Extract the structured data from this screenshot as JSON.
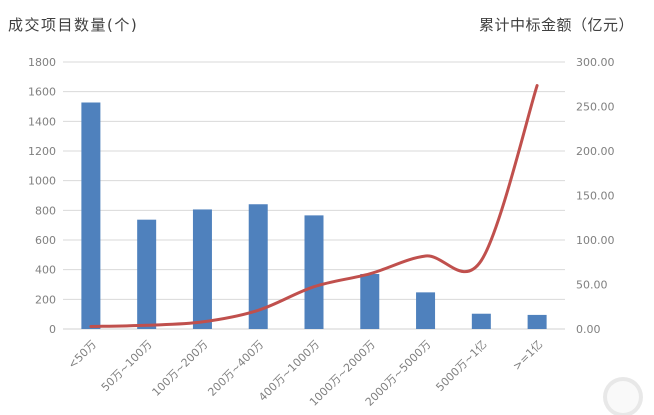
{
  "chart_data": {
    "type": "bar",
    "subtype": "dual-axis-bar-line-combo",
    "categories": [
      "<50万",
      "50万~100万",
      "100万~200万",
      "200万~400万",
      "400万~1000万",
      "1000万~2000万",
      "2000万~5000万",
      "5000万~1亿",
      ">=1亿"
    ],
    "series": [
      {
        "name": "成交项目数量",
        "type": "bar",
        "axis": "left",
        "color": "#4F81BD",
        "values": [
          1527,
          737,
          806,
          841,
          766,
          371,
          247,
          103,
          95
        ]
      },
      {
        "name": "累计中标金额",
        "type": "line",
        "axis": "right",
        "color": "#C0504D",
        "smooth": true,
        "values": [
          2.8,
          4.2,
          8.0,
          21.0,
          47.5,
          62.0,
          82.0,
          77.0,
          273.5
        ]
      }
    ],
    "left_axis": {
      "title": "成交项目数量(个)",
      "min": 0,
      "max": 1800,
      "step": 200,
      "tick_labels": [
        "0",
        "200",
        "400",
        "600",
        "800",
        "1000",
        "1200",
        "1400",
        "1600",
        "1800"
      ]
    },
    "right_axis": {
      "title": "累计中标金额（亿元）",
      "min": 0,
      "max": 300,
      "step": 50,
      "tick_labels": [
        "0.00",
        "50.00",
        "100.00",
        "150.00",
        "200.00",
        "250.00",
        "300.00"
      ]
    },
    "grid": true,
    "legend": "none",
    "x_label_rotation_deg": -45
  },
  "style": {
    "background_color": "#ffffff",
    "grid_color": "#D9D9D9",
    "axis_line_color": "#D0D0D0",
    "tick_label_color": "#808080",
    "title_color": "#404040",
    "bar_color": "#4F81BD",
    "line_color": "#C0504D"
  }
}
